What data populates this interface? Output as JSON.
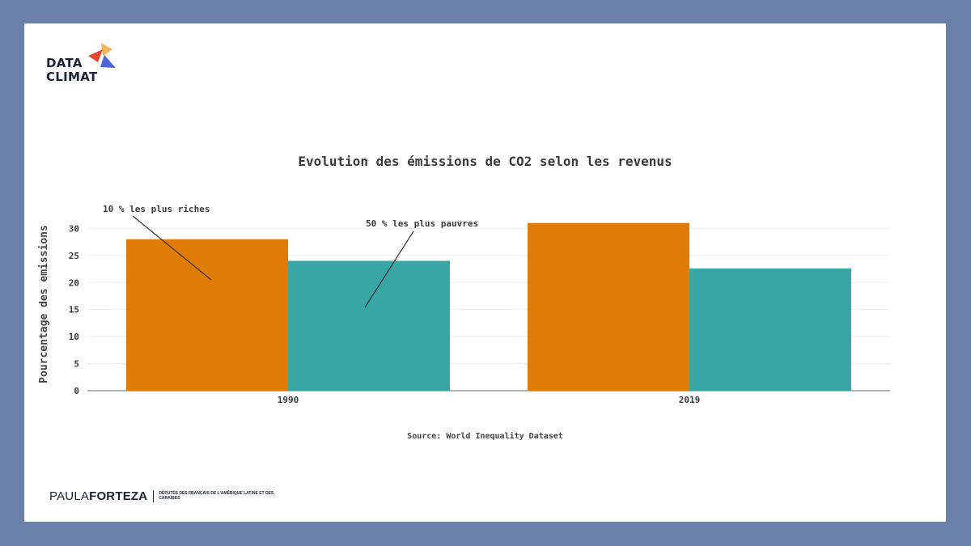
{
  "logo": {
    "line1": "DATA",
    "line2": "CLIMAT",
    "colors": [
      "#f2b35a",
      "#e8452e",
      "#4a63d6"
    ]
  },
  "chart_data": {
    "type": "bar",
    "title": "Evolution des émissions de CO2 selon les revenus",
    "ylabel": "Pourcentage des emissions",
    "xlabel": "",
    "categories": [
      "1990",
      "2019"
    ],
    "series": [
      {
        "name": "10 % les plus riches",
        "values": [
          28,
          31
        ],
        "color": "#e07b05"
      },
      {
        "name": "50 % les plus pauvres",
        "values": [
          24,
          22.6
        ],
        "color": "#39a6a6"
      }
    ],
    "ylim": [
      0,
      32
    ],
    "yticks": [
      0,
      5,
      10,
      15,
      20,
      25,
      30
    ],
    "grid": true,
    "legend": "annotations",
    "source": "Source: World Inequality Dataset"
  },
  "footer": {
    "name_light": "PAULA",
    "name_bold": "FORTEZA",
    "role": "Députée des Français de l'Amérique Latine et des Caraïbes"
  }
}
